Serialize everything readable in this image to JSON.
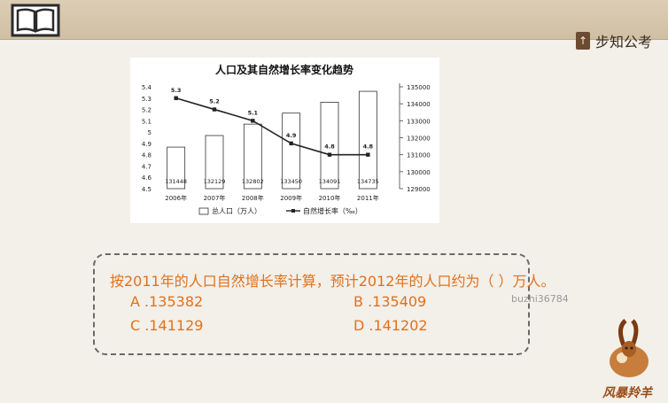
{
  "header": {
    "brand_text": "步知公考",
    "brand_logo_glyph": "↑"
  },
  "chart_data": {
    "type": "bar+line",
    "title": "人口及其自然增长率变化趋势",
    "categories": [
      "2006年",
      "2007年",
      "2008年",
      "2009年",
      "2010年",
      "2011年"
    ],
    "series": [
      {
        "name": "总人口（万人）",
        "kind": "bar",
        "axis": "right",
        "values": [
          131448,
          132129,
          132802,
          133450,
          134091,
          134735
        ]
      },
      {
        "name": "自然增长率（‰）",
        "kind": "line",
        "axis": "left",
        "values": [
          5.3,
          5.2,
          5.1,
          4.9,
          4.8,
          4.8
        ]
      }
    ],
    "left_axis": {
      "min": 4.5,
      "max": 5.4,
      "ticks": [
        "4.5",
        "4.6",
        "4.7",
        "4.8",
        "4.9",
        "5",
        "5.1",
        "5.2",
        "5.3",
        "5.4"
      ]
    },
    "right_axis": {
      "min": 129000,
      "max": 135000,
      "ticks": [
        "129000",
        "130000",
        "131000",
        "132000",
        "133000",
        "134000",
        "135000"
      ]
    },
    "grid": false,
    "legend_position": "bottom",
    "colors": {
      "bar_fill": "#ffffff",
      "bar_stroke": "#333333",
      "line": "#222222"
    }
  },
  "question": {
    "text": "按2011年的人口自然增长率计算，预计2012年的人口约为（ ）万人。",
    "options": [
      {
        "label": "A .135382"
      },
      {
        "label": "B .135409"
      },
      {
        "label": "C .141129"
      },
      {
        "label": "D .141202"
      }
    ]
  },
  "watermark": "buzhi36784",
  "mascot": {
    "caption": "风暴羚羊"
  }
}
